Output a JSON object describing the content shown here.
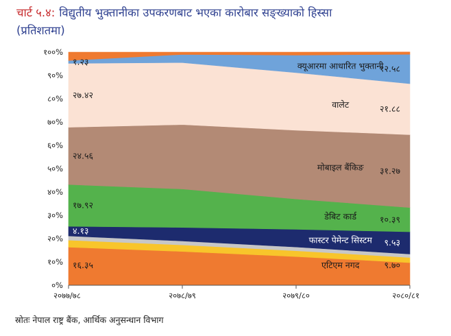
{
  "title": {
    "number": "चार्ट ५.४:",
    "line1": "विद्युतीय भुक्तानीका उपकरणबाट भएका कारोबार सङ्ख्याको हिस्सा",
    "line2": "(प्रतिशतमा)"
  },
  "source": "स्रोतः नेपाल राष्ट्र बैंक, आर्थिक अनुसन्धान विभाग",
  "chart_data": {
    "type": "area",
    "stacked": "percent",
    "x": [
      "२०७७/७८",
      "२०७८/७९",
      "२०७९/८०",
      "२०८०/८१"
    ],
    "y_ticks": [
      "०%",
      "१०%",
      "२०%",
      "३०%",
      "४०%",
      "५०%",
      "६०%",
      "७०%",
      "८०%",
      "९०%",
      "१००%"
    ],
    "ylim": [
      0,
      100
    ],
    "grid": false,
    "series": [
      {
        "name": "एटिएम नगद",
        "values": [
          16.35,
          14.5,
          12.3,
          9.7
        ],
        "color": "#ef7a30",
        "start_label": "१६.३५",
        "end_label": "९.७०",
        "name_label_color": "#1a1a1a"
      },
      {
        "values": [
          3.0,
          2.8,
          2.5,
          2.2
        ],
        "color": "#f8c52b"
      },
      {
        "values": [
          1.8,
          1.7,
          1.6,
          1.5
        ],
        "color": "#c7c7c7"
      },
      {
        "name": "फास्टर पेमेन्ट सिस्टम",
        "values": [
          4.13,
          5.8,
          7.6,
          9.53
        ],
        "color": "#1d2b6e",
        "start_label": "४.१३",
        "end_label": "९.५३",
        "name_label_color": "#ffffff"
      },
      {
        "name": "डेबिट कार्ड",
        "values": [
          17.92,
          16.5,
          13.0,
          10.39
        ],
        "color": "#54b24c",
        "start_label": "१७.९२",
        "end_label": "१०.३९",
        "name_label_color": "#1a1a1a"
      },
      {
        "name": "मोबाइल बैंकिङ",
        "values": [
          24.56,
          27.6,
          29.5,
          31.27
        ],
        "color": "#b38a75",
        "start_label": "२४.५६",
        "end_label": "३१.२७",
        "name_label_color": "#1a1a1a"
      },
      {
        "name": "वालेट",
        "values": [
          27.42,
          26.6,
          24.7,
          21.88
        ],
        "color": "#fbe2d4",
        "start_label": "२७.४२",
        "end_label": "२१.८८",
        "name_label_color": "#1a1a1a"
      },
      {
        "name": "क्यूआरमा आधारित भुक्तानी",
        "values": [
          1.23,
          3.5,
          7.5,
          12.58
        ],
        "color": "#6fa3da",
        "start_label": "१.२३",
        "end_label": "१२.५८",
        "name_label_color": "#1a1a1a"
      },
      {
        "values": [
          3.59,
          1.0,
          1.3,
          1.0
        ],
        "color": "#ef7a30"
      }
    ]
  }
}
